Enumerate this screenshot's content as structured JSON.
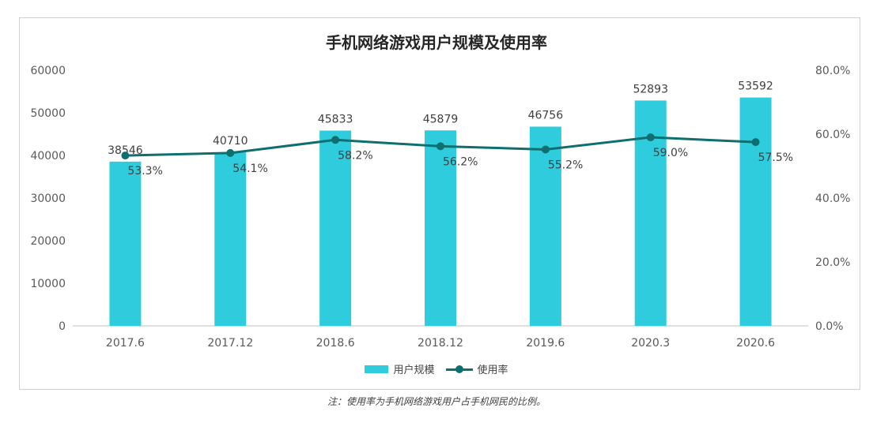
{
  "colors": {
    "bar": "#2ECCDC",
    "line": "#0F6E6E",
    "grid": "#d9d9d9",
    "axis": "#bfbfbf"
  },
  "chart_data": {
    "type": "bar+line",
    "title": "手机网络游戏用户规模及使用率",
    "categories": [
      "2017.6",
      "2017.12",
      "2018.6",
      "2018.12",
      "2019.6",
      "2020.3",
      "2020.6"
    ],
    "series": [
      {
        "name": "用户规模",
        "type": "bar",
        "axis": "left",
        "values": [
          38546,
          40710,
          45833,
          45879,
          46756,
          52893,
          53592
        ],
        "labels": [
          "38546",
          "40710",
          "45833",
          "45879",
          "46756",
          "52893",
          "53592"
        ]
      },
      {
        "name": "使用率",
        "type": "line",
        "axis": "right",
        "values": [
          53.3,
          54.1,
          58.2,
          56.2,
          55.2,
          59.0,
          57.5
        ],
        "labels": [
          "53.3%",
          "54.1%",
          "58.2%",
          "56.2%",
          "55.2%",
          "59.0%",
          "57.5%"
        ]
      }
    ],
    "y_left": {
      "min": 0,
      "max": 60000,
      "ticks": [
        "0",
        "10000",
        "20000",
        "30000",
        "40000",
        "50000",
        "60000"
      ]
    },
    "y_right": {
      "min": 0,
      "max": 80,
      "ticks": [
        "0.0%",
        "20.0%",
        "40.0%",
        "60.0%",
        "80.0%"
      ]
    },
    "grid": false,
    "legend": "bottom"
  },
  "footnote": "注：使用率为手机网络游戏用户占手机网民的比例。"
}
